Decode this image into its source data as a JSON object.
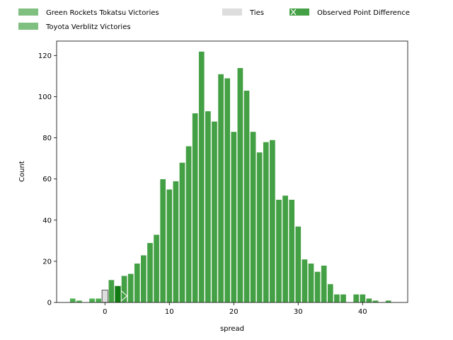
{
  "chart_data": {
    "type": "bar",
    "title": "",
    "xlabel": "spread",
    "ylabel": "Count",
    "xlim": [
      -7.5,
      47
    ],
    "ylim": [
      0,
      127
    ],
    "x_ticks": [
      0,
      10,
      20,
      30,
      40
    ],
    "y_ticks": [
      0,
      20,
      40,
      60,
      80,
      100,
      120
    ],
    "grid": false,
    "bin_width": 1,
    "series": [
      {
        "name": "Green Rockets Tokatsu Victories",
        "color": "#4caf50",
        "bins": [
          {
            "x": -5,
            "count": 2
          },
          {
            "x": -4,
            "count": 1
          },
          {
            "x": -2,
            "count": 2
          },
          {
            "x": -1,
            "count": 2
          }
        ]
      },
      {
        "name": "Ties",
        "color": "#dddddd",
        "bins": [
          {
            "x": 0,
            "count": 6
          }
        ]
      },
      {
        "name": "Toyota Verblitz Victories",
        "color": "#44a044",
        "bins": [
          {
            "x": 1,
            "count": 11
          },
          {
            "x": 2,
            "count": 8
          },
          {
            "x": 3,
            "count": 13
          },
          {
            "x": 4,
            "count": 14
          },
          {
            "x": 5,
            "count": 19
          },
          {
            "x": 6,
            "count": 23
          },
          {
            "x": 7,
            "count": 29
          },
          {
            "x": 8,
            "count": 33
          },
          {
            "x": 9,
            "count": 60
          },
          {
            "x": 10,
            "count": 55
          },
          {
            "x": 11,
            "count": 59
          },
          {
            "x": 12,
            "count": 68
          },
          {
            "x": 13,
            "count": 76
          },
          {
            "x": 14,
            "count": 92
          },
          {
            "x": 15,
            "count": 122
          },
          {
            "x": 16,
            "count": 93
          },
          {
            "x": 17,
            "count": 88
          },
          {
            "x": 18,
            "count": 111
          },
          {
            "x": 19,
            "count": 109
          },
          {
            "x": 20,
            "count": 83
          },
          {
            "x": 21,
            "count": 114
          },
          {
            "x": 22,
            "count": 103
          },
          {
            "x": 23,
            "count": 83
          },
          {
            "x": 24,
            "count": 73
          },
          {
            "x": 25,
            "count": 78
          },
          {
            "x": 26,
            "count": 79
          },
          {
            "x": 27,
            "count": 50
          },
          {
            "x": 28,
            "count": 52
          },
          {
            "x": 29,
            "count": 50
          },
          {
            "x": 30,
            "count": 37
          },
          {
            "x": 31,
            "count": 21
          },
          {
            "x": 32,
            "count": 19
          },
          {
            "x": 33,
            "count": 15
          },
          {
            "x": 34,
            "count": 18
          },
          {
            "x": 35,
            "count": 9
          },
          {
            "x": 36,
            "count": 4
          },
          {
            "x": 37,
            "count": 4
          },
          {
            "x": 39,
            "count": 4
          },
          {
            "x": 40,
            "count": 4
          },
          {
            "x": 41,
            "count": 2
          },
          {
            "x": 42,
            "count": 1
          },
          {
            "x": 44,
            "count": 1
          }
        ]
      }
    ],
    "highlight": {
      "name": "Observed Point Difference",
      "color": "#127a12",
      "x": 2,
      "count": 8,
      "marker_x": 3
    },
    "legend": {
      "placement": "top",
      "columns": [
        [
          "Green Rockets Tokatsu Victories",
          "Toyota Verblitz Victories"
        ],
        [
          "Ties"
        ],
        [
          "Observed Point Difference"
        ]
      ]
    }
  }
}
